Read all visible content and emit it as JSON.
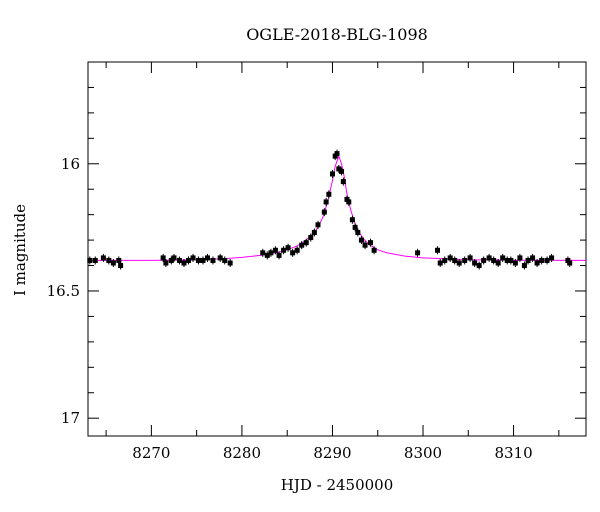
{
  "chart_data": {
    "type": "scatter",
    "title": "OGLE-2018-BLG-1098",
    "xlabel": "HJD - 2450000",
    "ylabel": "I magnitude",
    "xlim": [
      8263,
      8318
    ],
    "ylim": [
      17.07,
      15.6
    ],
    "y_inverted": true,
    "x_ticks": [
      8270,
      8280,
      8290,
      8300,
      8310
    ],
    "x_tick_labels": [
      "8270",
      "8280",
      "8290",
      "8300",
      "8310"
    ],
    "y_ticks": [
      16,
      16.5,
      17
    ],
    "y_tick_labels": [
      "16",
      "16.5",
      "17"
    ],
    "grid": false,
    "colors": {
      "points": "#000000",
      "model": "#ff00ff"
    },
    "series": [
      {
        "kind": "points",
        "x": [
          8263.2,
          8263.8,
          8264.7,
          8265.3,
          8265.8,
          8266.4,
          8266.6,
          8271.3,
          8271.6,
          8272.2,
          8272.5,
          8273.1,
          8273.6,
          8274.1,
          8274.6,
          8275.2,
          8275.7,
          8276.2,
          8276.8,
          8277.6,
          8278.1,
          8278.7,
          8282.3,
          8282.8,
          8283.2,
          8283.7,
          8284.1,
          8284.6,
          8285.1,
          8285.6,
          8286.1,
          8286.6,
          8287.1,
          8287.6,
          8288.0,
          8288.4,
          8289.1,
          8289.3,
          8289.6,
          8290.0,
          8290.3,
          8290.5,
          8290.7,
          8291.0,
          8291.2,
          8291.6,
          8291.8,
          8292.2,
          8292.5,
          8292.8,
          8293.2,
          8293.6,
          8294.2,
          8294.6,
          8299.4,
          8301.6,
          8301.9,
          8302.4,
          8303.0,
          8303.5,
          8304.0,
          8304.6,
          8305.2,
          8305.7,
          8306.2,
          8306.7,
          8307.3,
          8307.8,
          8308.3,
          8308.8,
          8309.3,
          8309.7,
          8310.2,
          8310.7,
          8311.2,
          8311.6,
          8312.1,
          8312.6,
          8313.1,
          8313.7,
          8314.2,
          8316.0,
          8316.2
        ],
        "y": [
          16.38,
          16.38,
          16.37,
          16.38,
          16.39,
          16.38,
          16.4,
          16.37,
          16.39,
          16.38,
          16.37,
          16.38,
          16.39,
          16.38,
          16.37,
          16.38,
          16.38,
          16.37,
          16.38,
          16.37,
          16.38,
          16.39,
          16.35,
          16.36,
          16.35,
          16.34,
          16.36,
          16.34,
          16.33,
          16.35,
          16.34,
          16.32,
          16.31,
          16.29,
          16.27,
          16.24,
          16.19,
          16.15,
          16.12,
          16.04,
          15.97,
          15.96,
          16.02,
          16.03,
          16.07,
          16.14,
          16.15,
          16.22,
          16.25,
          16.27,
          16.3,
          16.32,
          16.31,
          16.34,
          16.35,
          16.34,
          16.39,
          16.38,
          16.37,
          16.38,
          16.39,
          16.38,
          16.37,
          16.39,
          16.4,
          16.38,
          16.37,
          16.38,
          16.39,
          16.37,
          16.38,
          16.38,
          16.39,
          16.37,
          16.4,
          16.38,
          16.37,
          16.39,
          16.38,
          16.38,
          16.37,
          16.38,
          16.39
        ]
      },
      {
        "kind": "model",
        "x": [
          8263,
          8270,
          8275,
          8278,
          8280,
          8282,
          8284,
          8285,
          8286,
          8287,
          8288,
          8288.5,
          8289,
          8289.5,
          8290,
          8290.3,
          8290.7,
          8291,
          8291.3,
          8291.6,
          8292,
          8292.5,
          8293,
          8293.5,
          8294,
          8295,
          8296,
          8298,
          8300,
          8305,
          8310,
          8318
        ],
        "y": [
          16.38,
          16.38,
          16.377,
          16.373,
          16.368,
          16.36,
          16.348,
          16.338,
          16.324,
          16.303,
          16.271,
          16.244,
          16.205,
          16.145,
          16.065,
          16.01,
          15.97,
          16.0,
          16.05,
          16.12,
          16.18,
          16.235,
          16.272,
          16.298,
          16.316,
          16.338,
          16.35,
          16.363,
          16.37,
          16.377,
          16.379,
          16.38
        ]
      }
    ]
  }
}
